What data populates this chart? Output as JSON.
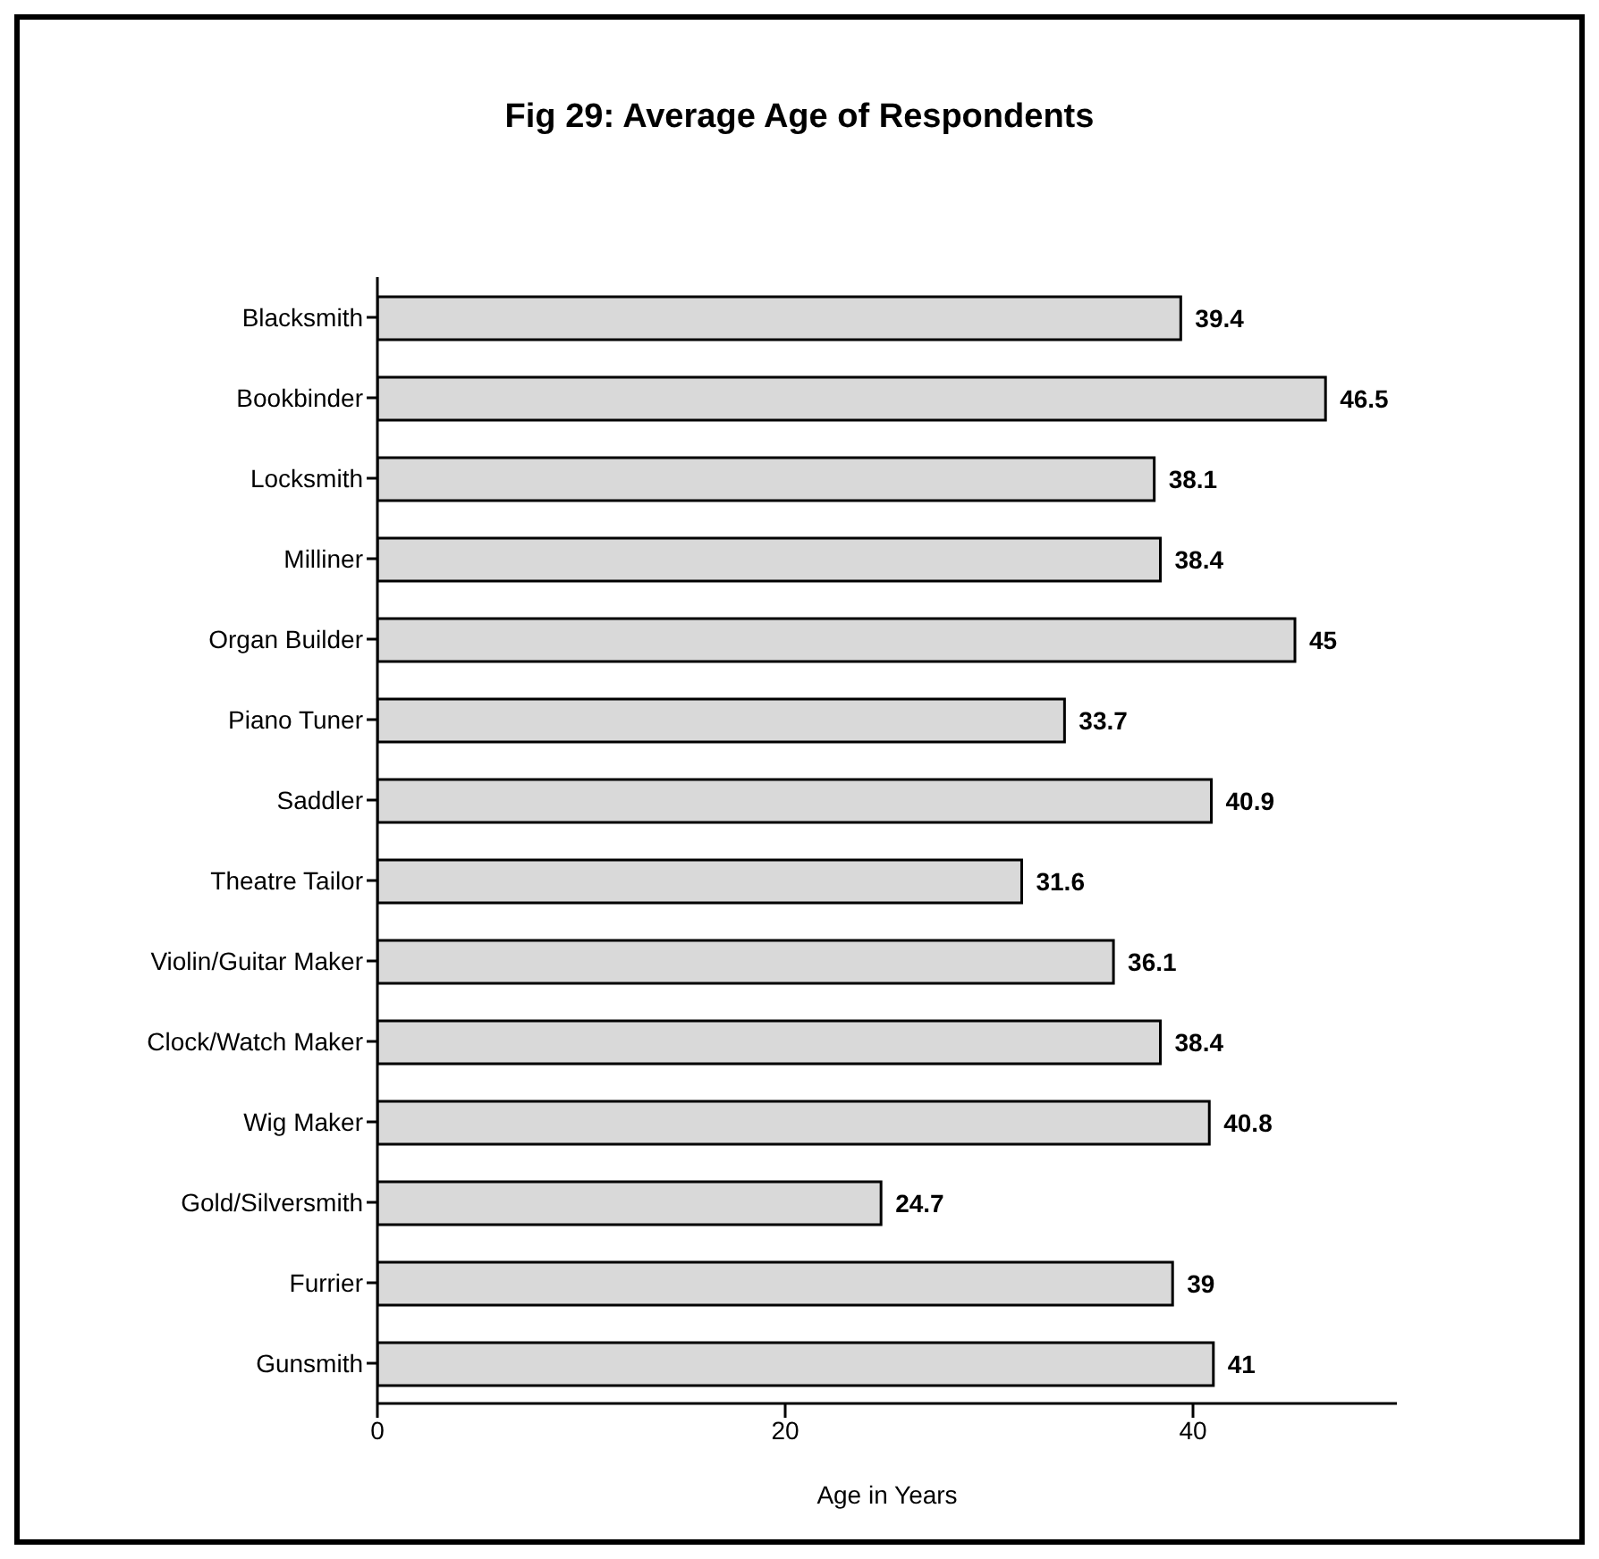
{
  "chart_data": {
    "type": "bar",
    "orientation": "horizontal",
    "title": "Fig 29:  Average Age of Respondents",
    "xlabel": "Age in Years",
    "categories": [
      "Blacksmith",
      "Bookbinder",
      "Locksmith",
      "Milliner",
      "Organ Builder",
      "Piano Tuner",
      "Saddler",
      "Theatre Tailor",
      "Violin/Guitar Maker",
      "Clock/Watch Maker",
      "Wig Maker",
      "Gold/Silversmith",
      "Furrier",
      "Gunsmith"
    ],
    "values": [
      39.4,
      46.5,
      38.1,
      38.4,
      45,
      33.7,
      40.9,
      31.6,
      36.1,
      38.4,
      40.8,
      24.7,
      39,
      41
    ],
    "color": "#d9d9d9",
    "xlim": [
      0,
      50
    ],
    "xticks": [
      0,
      20,
      40
    ],
    "data_labels": true,
    "grid": false,
    "legend": false
  }
}
